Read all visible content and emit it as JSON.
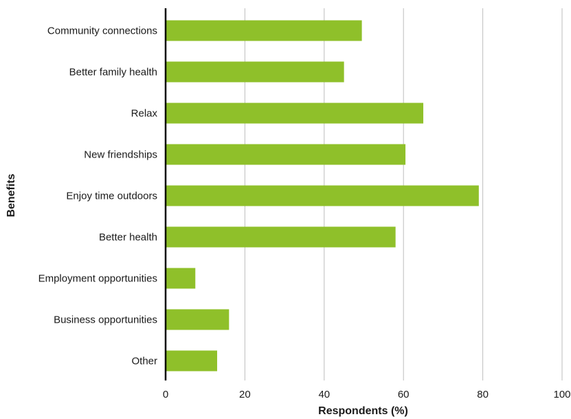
{
  "colors": {
    "bar": "#8fc02a",
    "grid": "#bdbdbd",
    "axis": "#000000",
    "text": "#1a1a1a"
  },
  "chart_data": {
    "type": "bar",
    "orientation": "horizontal",
    "title": "",
    "xlabel": "Respondents (%)",
    "ylabel": "Benefits",
    "categories": [
      "Community connections",
      "Better family health",
      "Relax",
      "New friendships",
      "Enjoy time outdoors",
      "Better health",
      "Employment opportunities",
      "Business opportunities",
      "Other"
    ],
    "values": [
      49.5,
      45,
      65,
      60.5,
      79,
      58,
      7.5,
      16,
      13
    ],
    "xlim": [
      0,
      100
    ],
    "xticks": [
      0,
      20,
      40,
      60,
      80,
      100
    ],
    "xtick_labels": [
      "0",
      "20",
      "40",
      "60",
      "80",
      "100"
    ],
    "grid": "vertical",
    "legend": "none"
  }
}
